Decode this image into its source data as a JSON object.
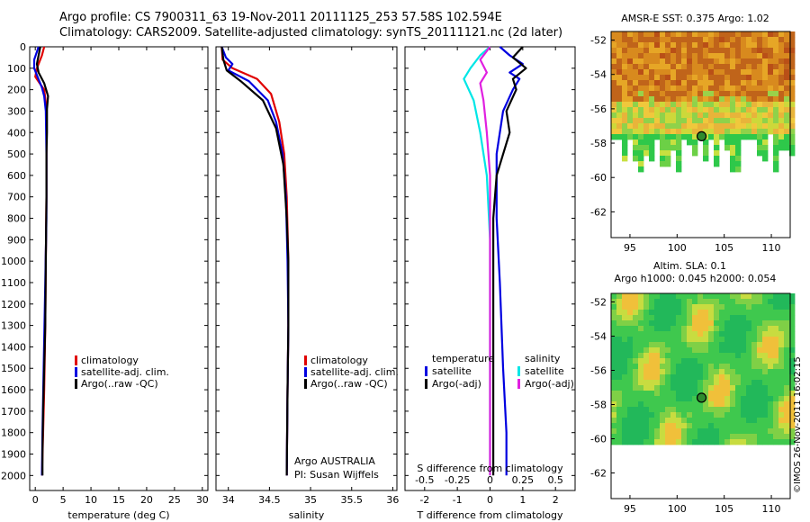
{
  "header": {
    "line1": "Argo profile: CS 7900311_63 19-Nov-2011 20111125_253 57.58S 102.594E",
    "line2": "Climatology: CARS2009. Satellite-adjusted climatology: synTS_20111121.nc (2d later)"
  },
  "colors": {
    "climatology": "#e00000",
    "satellite": "#0000e0",
    "argo": "#000000",
    "sal_satellite": "#00e6e6",
    "sal_argo": "#e020e0"
  },
  "chart_data": [
    {
      "type": "line",
      "panel": "temperature",
      "xlabel": "temperature (deg C)",
      "xlim": [
        -1,
        31
      ],
      "xticks": [
        0,
        5,
        10,
        15,
        20,
        25,
        30
      ],
      "ylim": [
        2070,
        0
      ],
      "yticks": [
        0,
        100,
        200,
        300,
        400,
        500,
        600,
        700,
        800,
        900,
        1000,
        1100,
        1200,
        1300,
        1400,
        1500,
        1600,
        1700,
        1800,
        1900,
        2000
      ],
      "legend": [
        "climatology",
        "satellite-adj. clim.",
        "Argo(..raw -QC)"
      ],
      "series": [
        {
          "name": "climatology",
          "color_key": "climatology",
          "points": [
            [
              1.6,
              0
            ],
            [
              1.2,
              40
            ],
            [
              0.3,
              100
            ],
            [
              0.0,
              140
            ],
            [
              0.8,
              170
            ],
            [
              1.6,
              200
            ],
            [
              1.9,
              260
            ],
            [
              2.0,
              350
            ],
            [
              2.0,
              500
            ],
            [
              2.0,
              700
            ],
            [
              1.9,
              1000
            ],
            [
              1.8,
              1300
            ],
            [
              1.6,
              1600
            ],
            [
              1.4,
              1800
            ],
            [
              1.2,
              2000
            ]
          ]
        },
        {
          "name": "satellite-adj. clim.",
          "color_key": "satellite",
          "points": [
            [
              0.6,
              0
            ],
            [
              -0.2,
              60
            ],
            [
              -0.2,
              100
            ],
            [
              0.4,
              140
            ],
            [
              1.2,
              190
            ],
            [
              1.6,
              230
            ],
            [
              1.9,
              300
            ],
            [
              2.0,
              500
            ],
            [
              2.0,
              800
            ],
            [
              1.8,
              1100
            ],
            [
              1.5,
              1500
            ],
            [
              1.3,
              1800
            ],
            [
              1.2,
              2000
            ]
          ]
        },
        {
          "name": "Argo(..raw -QC)",
          "color_key": "argo",
          "points": [
            [
              0.9,
              0
            ],
            [
              0.6,
              40
            ],
            [
              0.3,
              80
            ],
            [
              0.6,
              120
            ],
            [
              1.6,
              170
            ],
            [
              2.3,
              230
            ],
            [
              2.1,
              290
            ],
            [
              2.1,
              400
            ],
            [
              2.0,
              500
            ],
            [
              2.0,
              700
            ],
            [
              1.9,
              1000
            ],
            [
              1.8,
              1300
            ],
            [
              1.6,
              1500
            ],
            [
              1.4,
              1700
            ],
            [
              1.3,
              1900
            ],
            [
              1.3,
              2000
            ]
          ]
        }
      ]
    },
    {
      "type": "line",
      "panel": "salinity",
      "xlabel": "salinity",
      "xlim": [
        33.85,
        36.05
      ],
      "xticks": [
        34,
        34.5,
        35,
        35.5,
        36
      ],
      "xticklabels": [
        "34",
        "34.5",
        "35",
        "35.5",
        "36"
      ],
      "ylim": [
        2070,
        0
      ],
      "legend": [
        "climatology",
        "satellite-adj. clim.",
        "Argo(..raw -QC)"
      ],
      "annotations": [
        "Argo AUSTRALIA",
        "PI: Susan Wijffels"
      ],
      "series": [
        {
          "name": "climatology",
          "color_key": "climatology",
          "points": [
            [
              33.92,
              0
            ],
            [
              33.93,
              60
            ],
            [
              34.05,
              100
            ],
            [
              34.35,
              150
            ],
            [
              34.52,
              220
            ],
            [
              34.62,
              350
            ],
            [
              34.68,
              500
            ],
            [
              34.71,
              700
            ],
            [
              34.73,
              1000
            ],
            [
              34.73,
              1300
            ],
            [
              34.72,
              1600
            ],
            [
              34.71,
              2000
            ]
          ]
        },
        {
          "name": "satellite-adj. clim.",
          "color_key": "satellite",
          "points": [
            [
              33.92,
              0
            ],
            [
              33.97,
              50
            ],
            [
              34.05,
              80
            ],
            [
              34.0,
              110
            ],
            [
              34.25,
              160
            ],
            [
              34.48,
              250
            ],
            [
              34.58,
              350
            ],
            [
              34.66,
              500
            ],
            [
              34.7,
              700
            ],
            [
              34.72,
              1000
            ],
            [
              34.73,
              1300
            ],
            [
              34.72,
              1600
            ],
            [
              34.71,
              2000
            ]
          ]
        },
        {
          "name": "Argo(..raw -QC)",
          "color_key": "argo",
          "points": [
            [
              33.92,
              0
            ],
            [
              33.94,
              60
            ],
            [
              33.98,
              110
            ],
            [
              34.15,
              160
            ],
            [
              34.42,
              250
            ],
            [
              34.58,
              380
            ],
            [
              34.67,
              550
            ],
            [
              34.71,
              800
            ],
            [
              34.73,
              1000
            ],
            [
              34.73,
              1300
            ],
            [
              34.72,
              1600
            ],
            [
              34.71,
              2000
            ]
          ]
        }
      ]
    },
    {
      "type": "line",
      "panel": "difference",
      "xlabel": "T difference from climatology",
      "xlim": [
        -2.6,
        2.6
      ],
      "xticks": [
        -2,
        -1,
        0,
        1,
        2
      ],
      "top_axis_label": "S difference from climatology",
      "top_xticks": [
        -0.5,
        -0.25,
        0,
        0.25,
        0.5
      ],
      "top_xticklabels": [
        "-0.5",
        "-0.25",
        "0",
        "0.25",
        "0.5"
      ],
      "ylim": [
        2070,
        0
      ],
      "legend_titles": [
        "temperature",
        "salinity"
      ],
      "legend": [
        "satellite",
        "Argo(-adj)",
        "satellite",
        "Argo(-adj)"
      ],
      "series": [
        {
          "name": "satellite",
          "group": "temperature",
          "color_key": "satellite",
          "points": [
            [
              0.3,
              0
            ],
            [
              0.6,
              40
            ],
            [
              1.0,
              80
            ],
            [
              0.6,
              120
            ],
            [
              0.9,
              150
            ],
            [
              0.7,
              200
            ],
            [
              0.4,
              300
            ],
            [
              0.2,
              500
            ],
            [
              0.2,
              800
            ],
            [
              0.3,
              1100
            ],
            [
              0.4,
              1500
            ],
            [
              0.5,
              1800
            ],
            [
              0.5,
              2000
            ]
          ]
        },
        {
          "name": "Argo(-adj)",
          "group": "temperature",
          "color_key": "argo",
          "points": [
            [
              1.0,
              0
            ],
            [
              0.7,
              50
            ],
            [
              1.1,
              100
            ],
            [
              0.7,
              150
            ],
            [
              0.8,
              200
            ],
            [
              0.5,
              300
            ],
            [
              0.6,
              400
            ],
            [
              0.2,
              600
            ],
            [
              0.1,
              800
            ],
            [
              0.1,
              1100
            ],
            [
              0.1,
              1400
            ],
            [
              0.1,
              1800
            ],
            [
              0.1,
              2000
            ]
          ]
        },
        {
          "name": "satellite",
          "group": "salinity",
          "color_key": "sal_satellite",
          "points": [
            [
              0.0,
              0
            ],
            [
              -0.3,
              40
            ],
            [
              -0.6,
              100
            ],
            [
              -0.8,
              150
            ],
            [
              -0.5,
              250
            ],
            [
              -0.3,
              400
            ],
            [
              -0.1,
              600
            ],
            [
              0.0,
              900
            ],
            [
              0.0,
              1300
            ],
            [
              0.0,
              1700
            ],
            [
              0.0,
              2000
            ]
          ]
        },
        {
          "name": "Argo(-adj)",
          "group": "salinity",
          "color_key": "sal_argo",
          "points": [
            [
              0.0,
              0
            ],
            [
              -0.3,
              60
            ],
            [
              -0.1,
              120
            ],
            [
              -0.3,
              170
            ],
            [
              -0.2,
              250
            ],
            [
              -0.1,
              400
            ],
            [
              0.0,
              600
            ],
            [
              0.0,
              900
            ],
            [
              0.0,
              1300
            ],
            [
              0.0,
              1700
            ],
            [
              0.0,
              2000
            ]
          ]
        }
      ]
    },
    {
      "type": "heatmap",
      "panel": "sst_map",
      "title": "AMSR-E SST: 0.375 Argo: 1.02",
      "xlim": [
        93,
        112
      ],
      "ylim": [
        -63.5,
        -51.5
      ],
      "xticks": [
        95,
        100,
        105,
        110
      ],
      "yticks": [
        -52,
        -54,
        -56,
        -58,
        -60,
        -62
      ],
      "marker": {
        "lon": 102.6,
        "lat": -57.6
      }
    },
    {
      "type": "heatmap",
      "panel": "sla_map",
      "title": "Altim. SLA: 0.1",
      "subtitle": "Argo h1000: 0.045 h2000: 0.054",
      "xlim": [
        93,
        112
      ],
      "ylim": [
        -63.5,
        -51.5
      ],
      "xticks": [
        95,
        100,
        105,
        110
      ],
      "yticks": [
        -52,
        -54,
        -56,
        -58,
        -60,
        -62
      ],
      "marker": {
        "lon": 102.6,
        "lat": -57.6
      }
    }
  ],
  "credit": "©IMOS 26-Nov-2011 16:02:15"
}
